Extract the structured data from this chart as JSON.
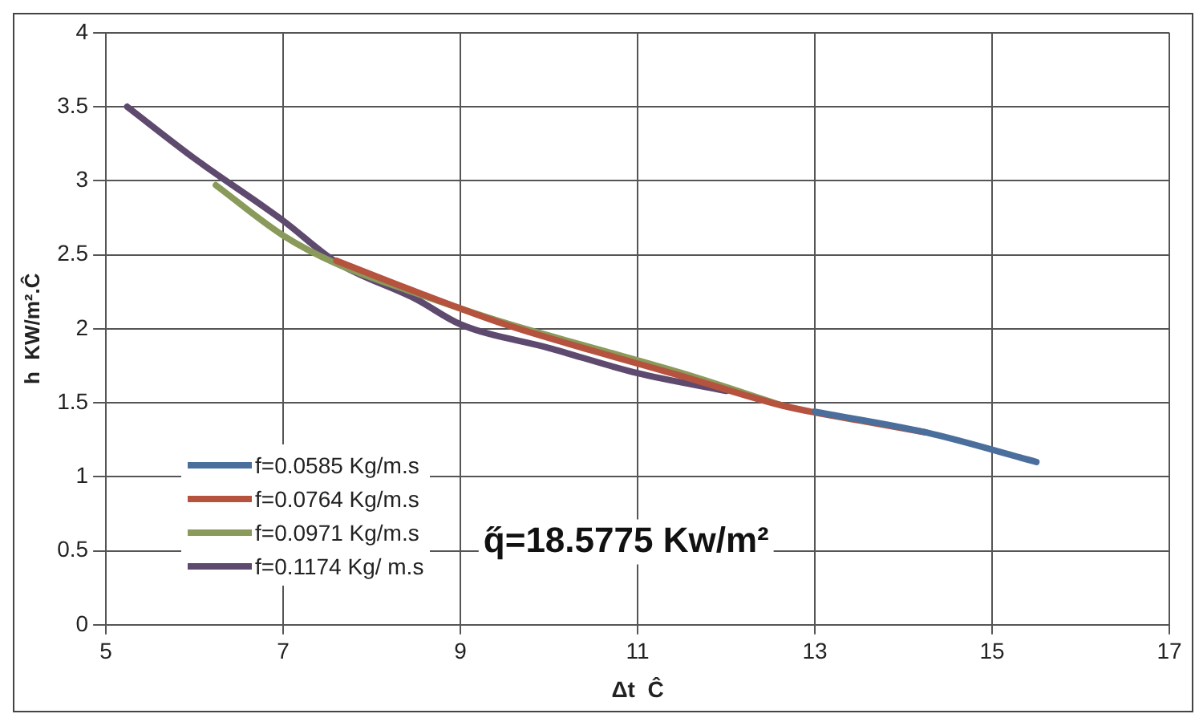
{
  "chart_data": {
    "type": "line",
    "xlabel": "Δt  Ĉ",
    "ylabel": "h  KW/m².Ĉ",
    "xlim": [
      5,
      17
    ],
    "xticks": [
      5,
      7,
      9,
      11,
      13,
      15,
      17
    ],
    "ylim": [
      0,
      4
    ],
    "yticks": [
      0,
      0.5,
      1,
      1.5,
      2,
      2.5,
      3,
      3.5,
      4
    ],
    "grid": true,
    "legend": "bottom left",
    "marker": "none",
    "line_style": "solid",
    "annotations": [
      "q̋=18.5775 Kw/m²"
    ],
    "series": [
      {
        "name": "f=0.0585 Kg/m.s",
        "color": "#4a6f9c",
        "x": [
          13.0,
          14.25,
          15.5
        ],
        "values": [
          1.44,
          1.3,
          1.1
        ]
      },
      {
        "name": "f=0.0764  Kg/m.s",
        "color": "#b5533f",
        "x": [
          7.6,
          8.5,
          9.5,
          10.5,
          11.5,
          12.64,
          13.5,
          14.25
        ],
        "values": [
          2.46,
          2.25,
          2.03,
          1.85,
          1.68,
          1.48,
          1.38,
          1.3
        ]
      },
      {
        "name": "f=0.0971 Kg/m.s",
        "color": "#8a9a5b",
        "x": [
          6.24,
          7.0,
          7.6,
          8.5,
          9.5,
          10.5,
          11.5,
          12.64
        ],
        "values": [
          2.97,
          2.63,
          2.44,
          2.24,
          2.04,
          1.87,
          1.7,
          1.48
        ]
      },
      {
        "name": "f=0.1174  Kg/ m.s",
        "color": "#5e4a6e",
        "x": [
          5.24,
          6.0,
          7.0,
          7.6,
          8.5,
          9.0,
          10.0,
          11.0,
          12.0
        ],
        "values": [
          3.5,
          3.15,
          2.73,
          2.45,
          2.2,
          2.03,
          1.87,
          1.7,
          1.58
        ]
      }
    ]
  }
}
